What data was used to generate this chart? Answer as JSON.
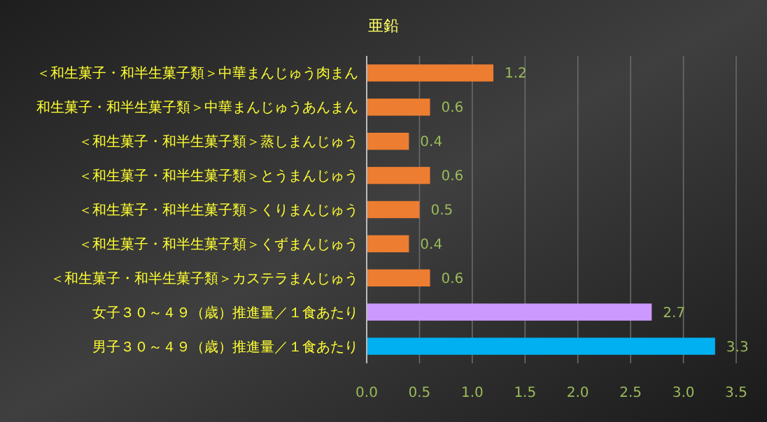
{
  "chart_data": {
    "type": "bar",
    "orientation": "horizontal",
    "title": "亜鉛",
    "categories": [
      "＜和生菓子・和半生菓子類＞中華まんじゅう肉まん",
      "和生菓子・和半生菓子類＞中華まんじゅうあんまん",
      "＜和生菓子・和半生菓子類＞蒸しまんじゅう",
      "＜和生菓子・和半生菓子類＞とうまんじゅう",
      "＜和生菓子・和半生菓子類＞くりまんじゅう",
      "＜和生菓子・和半生菓子類＞くずまんじゅう",
      "＜和生菓子・和半生菓子類＞カステラまんじゅう",
      "女子３０～４９（歳）推進量／１食あたり",
      "男子３０～４９（歳）推進量／１食あたり"
    ],
    "values": [
      1.2,
      0.6,
      0.4,
      0.6,
      0.5,
      0.4,
      0.6,
      2.7,
      3.3
    ],
    "colors": [
      "#ed7d31",
      "#ed7d31",
      "#ed7d31",
      "#ed7d31",
      "#ed7d31",
      "#ed7d31",
      "#ed7d31",
      "#cc99ff",
      "#00b0f0"
    ],
    "xlim": [
      0,
      3.5
    ],
    "xticks": [
      {
        "value": 0,
        "label": "0.0"
      },
      {
        "value": 0.5,
        "label": "0.5"
      },
      {
        "value": 1,
        "label": "1.0"
      },
      {
        "value": 1.5,
        "label": "1.5"
      },
      {
        "value": 2,
        "label": "2.0"
      },
      {
        "value": 2.5,
        "label": "2.5"
      },
      {
        "value": 3,
        "label": "3.0"
      },
      {
        "value": 3.5,
        "label": "3.5"
      }
    ],
    "grid": "x",
    "data_labels": true
  }
}
